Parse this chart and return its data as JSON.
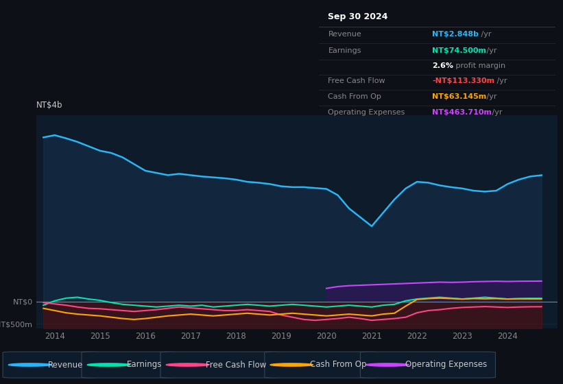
{
  "bg_color": "#0d1117",
  "plot_bg_color": "#0d1b2a",
  "colors": {
    "revenue": "#29b6f6",
    "earnings": "#00e5b0",
    "fcf": "#ff4488",
    "cashop": "#ffa500",
    "opex": "#cc44ff",
    "revenue_fill": "#1a3a5c",
    "earnings_neg_fill": "#5a1010",
    "opex_fill": "#3a1060"
  },
  "revenue_x": [
    2013.75,
    2014.0,
    2014.25,
    2014.5,
    2014.75,
    2015.0,
    2015.25,
    2015.5,
    2015.75,
    2016.0,
    2016.25,
    2016.5,
    2016.75,
    2017.0,
    2017.25,
    2017.5,
    2017.75,
    2018.0,
    2018.25,
    2018.5,
    2018.75,
    2019.0,
    2019.25,
    2019.5,
    2019.75,
    2020.0,
    2020.25,
    2020.5,
    2020.75,
    2021.0,
    2021.25,
    2021.5,
    2021.75,
    2022.0,
    2022.25,
    2022.5,
    2022.75,
    2023.0,
    2023.25,
    2023.5,
    2023.75,
    2024.0,
    2024.25,
    2024.5,
    2024.75
  ],
  "revenue_y": [
    3700,
    3750,
    3680,
    3600,
    3500,
    3400,
    3350,
    3250,
    3100,
    2950,
    2900,
    2850,
    2880,
    2850,
    2820,
    2800,
    2780,
    2750,
    2700,
    2680,
    2650,
    2600,
    2580,
    2580,
    2560,
    2540,
    2400,
    2100,
    1900,
    1700,
    2000,
    2300,
    2550,
    2700,
    2680,
    2620,
    2580,
    2550,
    2500,
    2480,
    2500,
    2650,
    2750,
    2820,
    2848
  ],
  "earnings_x": [
    2013.75,
    2014.0,
    2014.25,
    2014.5,
    2014.75,
    2015.0,
    2015.25,
    2015.5,
    2015.75,
    2016.0,
    2016.25,
    2016.5,
    2016.75,
    2017.0,
    2017.25,
    2017.5,
    2017.75,
    2018.0,
    2018.25,
    2018.5,
    2018.75,
    2019.0,
    2019.25,
    2019.5,
    2019.75,
    2020.0,
    2020.25,
    2020.5,
    2020.75,
    2021.0,
    2021.25,
    2021.5,
    2021.75,
    2022.0,
    2022.25,
    2022.5,
    2022.75,
    2023.0,
    2023.25,
    2023.5,
    2023.75,
    2024.0,
    2024.25,
    2024.5,
    2024.75
  ],
  "earnings_y": [
    -80,
    20,
    80,
    100,
    60,
    30,
    -20,
    -60,
    -80,
    -100,
    -120,
    -100,
    -80,
    -100,
    -80,
    -120,
    -100,
    -80,
    -60,
    -80,
    -100,
    -80,
    -60,
    -80,
    -100,
    -120,
    -100,
    -80,
    -100,
    -120,
    -80,
    -60,
    20,
    60,
    80,
    100,
    80,
    60,
    80,
    100,
    80,
    60,
    70,
    75,
    74.5
  ],
  "fcf_x": [
    2013.75,
    2014.0,
    2014.25,
    2014.5,
    2014.75,
    2015.0,
    2015.25,
    2015.5,
    2015.75,
    2016.0,
    2016.25,
    2016.5,
    2016.75,
    2017.0,
    2017.25,
    2017.5,
    2017.75,
    2018.0,
    2018.25,
    2018.5,
    2018.75,
    2019.0,
    2019.25,
    2019.5,
    2019.75,
    2020.0,
    2020.25,
    2020.5,
    2020.75,
    2021.0,
    2021.25,
    2021.5,
    2021.75,
    2022.0,
    2022.25,
    2022.5,
    2022.75,
    2023.0,
    2023.25,
    2023.5,
    2023.75,
    2024.0,
    2024.25,
    2024.5,
    2024.75
  ],
  "fcf_y": [
    -20,
    -50,
    -80,
    -120,
    -150,
    -160,
    -180,
    -200,
    -220,
    -200,
    -180,
    -150,
    -120,
    -140,
    -160,
    -180,
    -200,
    -200,
    -180,
    -200,
    -220,
    -300,
    -350,
    -400,
    -420,
    -400,
    -380,
    -350,
    -380,
    -420,
    -400,
    -380,
    -350,
    -250,
    -200,
    -180,
    -150,
    -130,
    -120,
    -110,
    -120,
    -130,
    -120,
    -115,
    -113.33
  ],
  "cashop_x": [
    2013.75,
    2014.0,
    2014.25,
    2014.5,
    2014.75,
    2015.0,
    2015.25,
    2015.5,
    2015.75,
    2016.0,
    2016.25,
    2016.5,
    2016.75,
    2017.0,
    2017.25,
    2017.5,
    2017.75,
    2018.0,
    2018.25,
    2018.5,
    2018.75,
    2019.0,
    2019.25,
    2019.5,
    2019.75,
    2020.0,
    2020.25,
    2020.5,
    2020.75,
    2021.0,
    2021.25,
    2021.5,
    2021.75,
    2022.0,
    2022.25,
    2022.5,
    2022.75,
    2023.0,
    2023.25,
    2023.5,
    2023.75,
    2024.0,
    2024.25,
    2024.5,
    2024.75
  ],
  "cashop_y": [
    -150,
    -200,
    -250,
    -280,
    -300,
    -320,
    -350,
    -380,
    -400,
    -380,
    -350,
    -320,
    -300,
    -280,
    -300,
    -320,
    -300,
    -280,
    -260,
    -280,
    -300,
    -280,
    -260,
    -280,
    -300,
    -320,
    -300,
    -280,
    -300,
    -320,
    -280,
    -260,
    -100,
    50,
    70,
    80,
    70,
    60,
    70,
    65,
    70,
    60,
    65,
    63,
    63.145
  ],
  "opex_x": [
    2020.0,
    2020.25,
    2020.5,
    2020.75,
    2021.0,
    2021.25,
    2021.5,
    2021.75,
    2022.0,
    2022.25,
    2022.5,
    2022.75,
    2023.0,
    2023.25,
    2023.5,
    2023.75,
    2024.0,
    2024.25,
    2024.5,
    2024.75
  ],
  "opex_y": [
    300,
    340,
    360,
    370,
    380,
    390,
    400,
    410,
    420,
    430,
    440,
    435,
    440,
    450,
    455,
    460,
    455,
    460,
    462,
    463.71
  ],
  "legend_items": [
    {
      "label": "Revenue",
      "color": "#29b6f6"
    },
    {
      "label": "Earnings",
      "color": "#00e5b0"
    },
    {
      "label": "Free Cash Flow",
      "color": "#ff4488"
    },
    {
      "label": "Cash From Op",
      "color": "#ffa500"
    },
    {
      "label": "Operating Expenses",
      "color": "#cc44ff"
    }
  ],
  "info_rows": [
    {
      "label": "Sep 30 2024",
      "value": "",
      "label_color": "#ffffff",
      "value_color": "#ffffff",
      "is_title": true
    },
    {
      "label": "Revenue",
      "value": "NT$2.848b",
      "unit": "/yr",
      "label_color": "#888888",
      "value_color": "#29b6f6",
      "is_title": false
    },
    {
      "label": "Earnings",
      "value": "NT$74.500m",
      "unit": "/yr",
      "label_color": "#888888",
      "value_color": "#00e5b0",
      "is_title": false
    },
    {
      "label": "",
      "value": "2.6%",
      "extra": " profit margin",
      "unit": "",
      "label_color": "#888888",
      "value_color": "#ffffff",
      "is_title": false
    },
    {
      "label": "Free Cash Flow",
      "value": "-NT$113.330m",
      "unit": "/yr",
      "label_color": "#888888",
      "value_color": "#ff4444",
      "is_title": false
    },
    {
      "label": "Cash From Op",
      "value": "NT$63.145m",
      "unit": "/yr",
      "label_color": "#888888",
      "value_color": "#ffa500",
      "is_title": false
    },
    {
      "label": "Operating Expenses",
      "value": "NT$463.710m",
      "unit": "/yr",
      "label_color": "#888888",
      "value_color": "#cc44ff",
      "is_title": false
    }
  ],
  "xlim": [
    2013.6,
    2025.1
  ],
  "ylim": [
    -600,
    4200
  ],
  "xticks": [
    2014,
    2015,
    2016,
    2017,
    2018,
    2019,
    2020,
    2021,
    2022,
    2023,
    2024
  ],
  "ytick_zero": 0,
  "ytick_neg": -500,
  "ylabel_top": "NT$4b",
  "ylabel_zero": "NT$0",
  "ylabel_neg": "-NT$500m",
  "gridline_y1": 2000,
  "zero_line_y": 0
}
